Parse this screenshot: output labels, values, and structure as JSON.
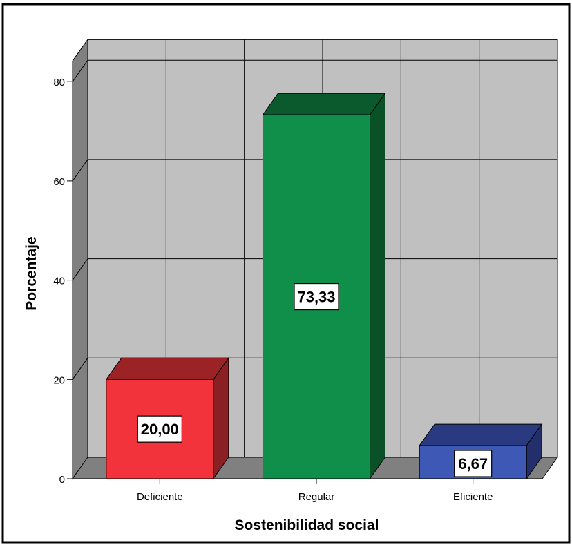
{
  "chart_data": {
    "type": "bar",
    "title": "",
    "xlabel": "Sostenibilidad social",
    "ylabel": "Porcentaje",
    "categories": [
      "Deficiente",
      "Regular",
      "Eficiente"
    ],
    "values": [
      20.0,
      73.33,
      6.67
    ],
    "value_labels": [
      "20,00",
      "73,33",
      "6,67"
    ],
    "ylim": [
      0,
      80
    ],
    "yticks": [
      0,
      20,
      40,
      60,
      80
    ],
    "ytick_labels": [
      "0",
      "20",
      "40",
      "60",
      "80"
    ],
    "grid": true,
    "legend": "none",
    "style": "3d",
    "colors": {
      "background": "#ffffff",
      "wall": "#c0c0c0",
      "side_wall": "#808080",
      "floor": "#808080",
      "grid": "#000000",
      "bars": [
        {
          "front": "#f2333b",
          "side": "#8b2024",
          "top": "#9b2326"
        },
        {
          "front": "#0f8f4a",
          "side": "#0a5128",
          "top": "#0b5a2d"
        },
        {
          "front": "#3e58b5",
          "side": "#222f6a",
          "top": "#2a3a80"
        }
      ]
    }
  }
}
